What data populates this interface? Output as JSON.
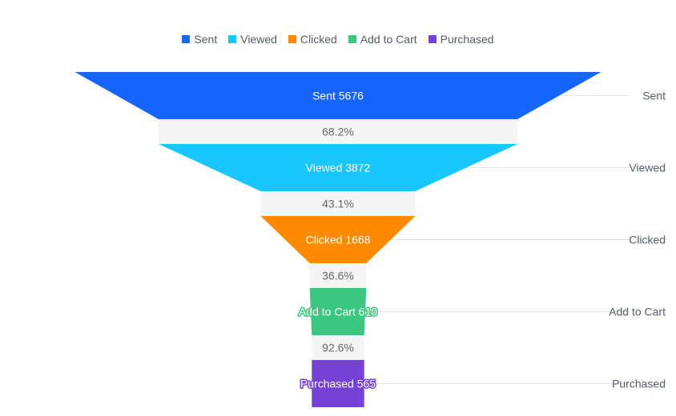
{
  "chart_data": {
    "type": "funnel",
    "title": "",
    "legend": {
      "position": "top",
      "items": [
        {
          "label": "Sent",
          "color": "#1665FF"
        },
        {
          "label": "Viewed",
          "color": "#1AC6FF"
        },
        {
          "label": "Clicked",
          "color": "#FF8A00"
        },
        {
          "label": "Add to Cart",
          "color": "#3CC780"
        },
        {
          "label": "Purchased",
          "color": "#7442D4"
        }
      ]
    },
    "stages": [
      {
        "name": "Sent",
        "value": 5676,
        "label": "Sent 5676",
        "color": "#1665FF"
      },
      {
        "name": "Viewed",
        "value": 3872,
        "label": "Viewed 3872",
        "color": "#1AC6FF"
      },
      {
        "name": "Clicked",
        "value": 1668,
        "label": "Clicked 1668",
        "color": "#FF8A00"
      },
      {
        "name": "Add to Cart",
        "value": 610,
        "label": "Add to Cart 610",
        "color": "#3CC780"
      },
      {
        "name": "Purchased",
        "value": 565,
        "label": "Purchased 565",
        "color": "#7442D4"
      }
    ],
    "conversion_rates": [
      "68.2%",
      "43.1%",
      "36.6%",
      "92.6%"
    ],
    "transition_color": "#F5F5F5"
  }
}
